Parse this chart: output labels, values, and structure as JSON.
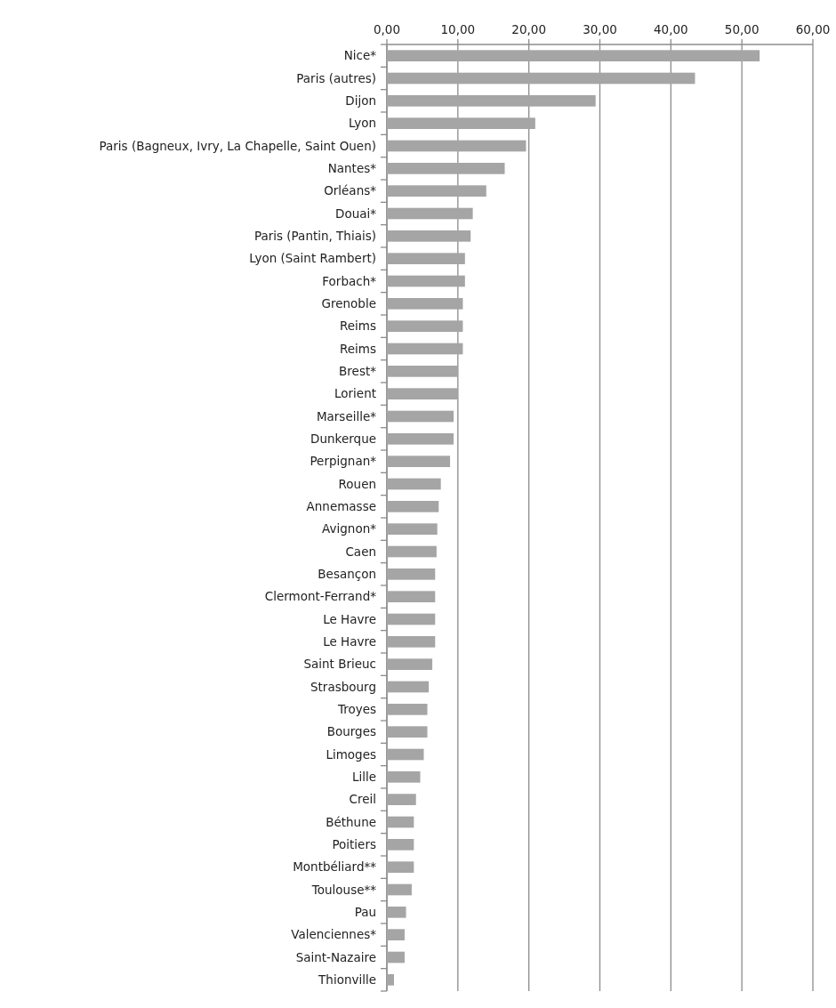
{
  "chart_data": {
    "type": "bar",
    "orientation": "horizontal",
    "color": "#a5a5a5",
    "categories": [
      "Nice*",
      "Paris (autres)",
      "Dijon",
      "Lyon",
      "Paris (Bagneux, Ivry, La Chapelle, Saint Ouen)",
      "Nantes*",
      "Orléans*",
      "Douai*",
      "Paris (Pantin, Thiais)",
      "Lyon (Saint Rambert)",
      "Forbach*",
      "Grenoble",
      "Reims",
      "Reims",
      "Brest*",
      "Lorient",
      "Marseille*",
      "Dunkerque",
      "Perpignan*",
      "Rouen",
      "Annemasse",
      "Avignon*",
      "Caen",
      "Besançon",
      "Clermont-Ferrand*",
      "Le Havre",
      "Le Havre",
      "Saint Brieuc",
      "Strasbourg",
      "Troyes",
      "Bourges",
      "Limoges",
      "Lille",
      "Creil",
      "Béthune",
      "Poitiers",
      "Montbéliard**",
      "Toulouse**",
      "Pau",
      "Valenciennes*",
      "Saint-Nazaire",
      "Thionville"
    ],
    "values": [
      52.5,
      43.4,
      29.4,
      20.9,
      19.6,
      16.6,
      14.0,
      12.1,
      11.8,
      11.0,
      11.0,
      10.7,
      10.7,
      10.7,
      10.0,
      10.0,
      9.4,
      9.4,
      8.9,
      7.6,
      7.3,
      7.1,
      7.0,
      6.8,
      6.8,
      6.8,
      6.8,
      6.4,
      5.9,
      5.7,
      5.7,
      5.2,
      4.7,
      4.1,
      3.8,
      3.8,
      3.8,
      3.5,
      2.7,
      2.5,
      2.5,
      1.0
    ],
    "xlim": [
      0,
      60
    ],
    "xticks": [
      {
        "value": 0,
        "label": "0,00"
      },
      {
        "value": 10,
        "label": "10,00"
      },
      {
        "value": 20,
        "label": "20,00"
      },
      {
        "value": 30,
        "label": "30,00"
      },
      {
        "value": 40,
        "label": "40,00"
      },
      {
        "value": 50,
        "label": "50,00"
      },
      {
        "value": 60,
        "label": "60,00"
      }
    ],
    "grid": "x"
  }
}
